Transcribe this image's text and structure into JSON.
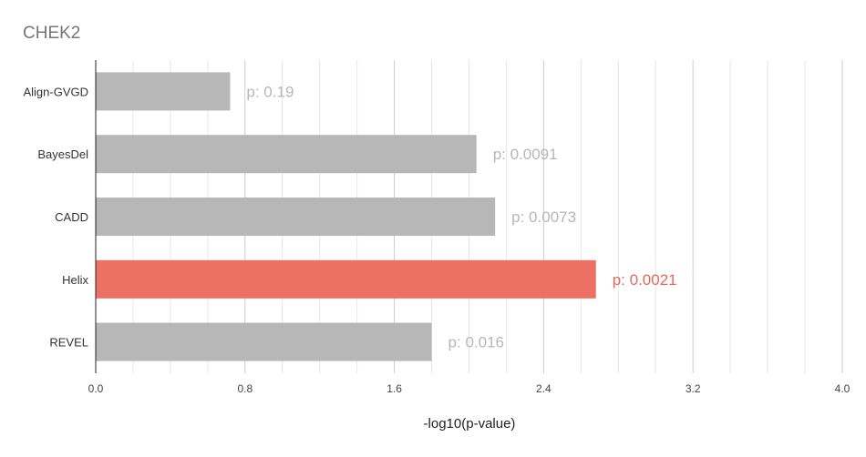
{
  "chart_data": {
    "type": "bar",
    "orientation": "horizontal",
    "title": "CHEK2",
    "xlabel": "-log10(p-value)",
    "ylabel": "",
    "xlim": [
      0,
      4
    ],
    "xticks": [
      "0.0",
      "0.8",
      "1.6",
      "2.4",
      "3.2",
      "4.0"
    ],
    "grid": true,
    "categories": [
      "Align-GVGD",
      "BayesDel",
      "CADD",
      "Helix",
      "REVEL"
    ],
    "values": [
      0.72,
      2.04,
      2.14,
      2.68,
      1.8
    ],
    "data_labels": [
      "p: 0.19",
      "p: 0.0091",
      "p: 0.0073",
      "p: 0.0021",
      "p: 0.016"
    ],
    "highlight": "Helix",
    "colors": {
      "default_bar": "#b7b7b7",
      "highlight_bar": "#ec7063",
      "default_label": "#b7b7b7",
      "highlight_label": "#e8675b",
      "grid": "#e6e6e6",
      "axis": "#222222"
    }
  }
}
